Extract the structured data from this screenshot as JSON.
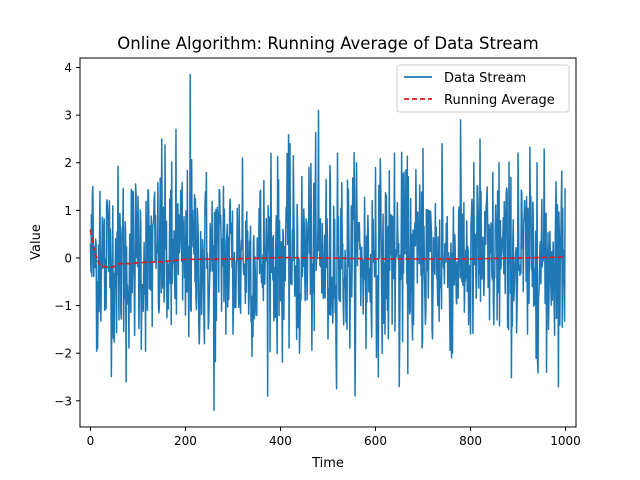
{
  "chart_data": {
    "type": "line",
    "title": "Online Algorithm: Running Average of Data Stream",
    "xlabel": "Time",
    "ylabel": "Value",
    "xlim": [
      -22,
      1022
    ],
    "ylim": [
      -3.55,
      4.2
    ],
    "xticks": [
      0,
      200,
      400,
      600,
      800,
      1000
    ],
    "yticks": [
      -3,
      -2,
      -1,
      0,
      1,
      2,
      3,
      4
    ],
    "xtick_labels": [
      "0",
      "200",
      "400",
      "600",
      "800",
      "1000"
    ],
    "ytick_labels": [
      "−3",
      "−2",
      "−1",
      "0",
      "1",
      "2",
      "3",
      "4"
    ],
    "grid": false,
    "legend": {
      "position": "upper right",
      "entries": [
        "Data Stream",
        "Running Average"
      ]
    },
    "series": [
      {
        "name": "Data Stream",
        "color": "#1f77b4",
        "style": "solid",
        "n_points": 1000,
        "x": [
          0,
          5,
          10,
          15,
          20,
          30,
          40,
          60,
          75,
          100,
          120,
          150,
          170,
          180,
          200,
          210,
          220,
          240,
          260,
          280,
          300,
          320,
          350,
          380,
          400,
          420,
          440,
          460,
          480,
          500,
          520,
          540,
          560,
          580,
          600,
          620,
          640,
          650,
          660,
          680,
          700,
          720,
          740,
          760,
          780,
          800,
          820,
          840,
          860,
          880,
          900,
          920,
          940,
          960,
          980,
          1000
        ],
        "y": [
          0.3,
          1.5,
          -0.2,
          -1.9,
          1.4,
          -1.1,
          1.2,
          -1.3,
          -2.6,
          1.3,
          -1.1,
          2.5,
          -1.4,
          2.7,
          -1.2,
          3.85,
          -0.5,
          -1.8,
          -3.2,
          1.5,
          -1.6,
          2.1,
          -1.2,
          2.2,
          -0.9,
          2.4,
          -2.0,
          1.9,
          3.1,
          -1.7,
          2.2,
          -1.5,
          2.0,
          -1.9,
          1.9,
          -1.6,
          2.2,
          -2.7,
          1.8,
          -1.4,
          2.3,
          -1.7,
          2.4,
          -2.1,
          1.5,
          -1.6,
          2.5,
          -1.3,
          2.0,
          -1.5,
          2.2,
          -1.6,
          2.0,
          -2.4,
          1.6,
          0.6
        ]
      },
      {
        "name": "Running Average",
        "color": "#e31a1c",
        "style": "dashed",
        "x": [
          0,
          2,
          4,
          6,
          10,
          15,
          20,
          30,
          40,
          50,
          60,
          80,
          100,
          150,
          200,
          300,
          400,
          500,
          600,
          700,
          800,
          900,
          1000
        ],
        "y": [
          0.6,
          0.45,
          0.35,
          0.25,
          0.1,
          -0.05,
          -0.15,
          -0.18,
          -0.2,
          -0.18,
          -0.12,
          -0.12,
          -0.1,
          -0.08,
          -0.03,
          -0.02,
          0.01,
          0.0,
          -0.02,
          -0.02,
          -0.02,
          0.0,
          0.02
        ]
      }
    ]
  }
}
